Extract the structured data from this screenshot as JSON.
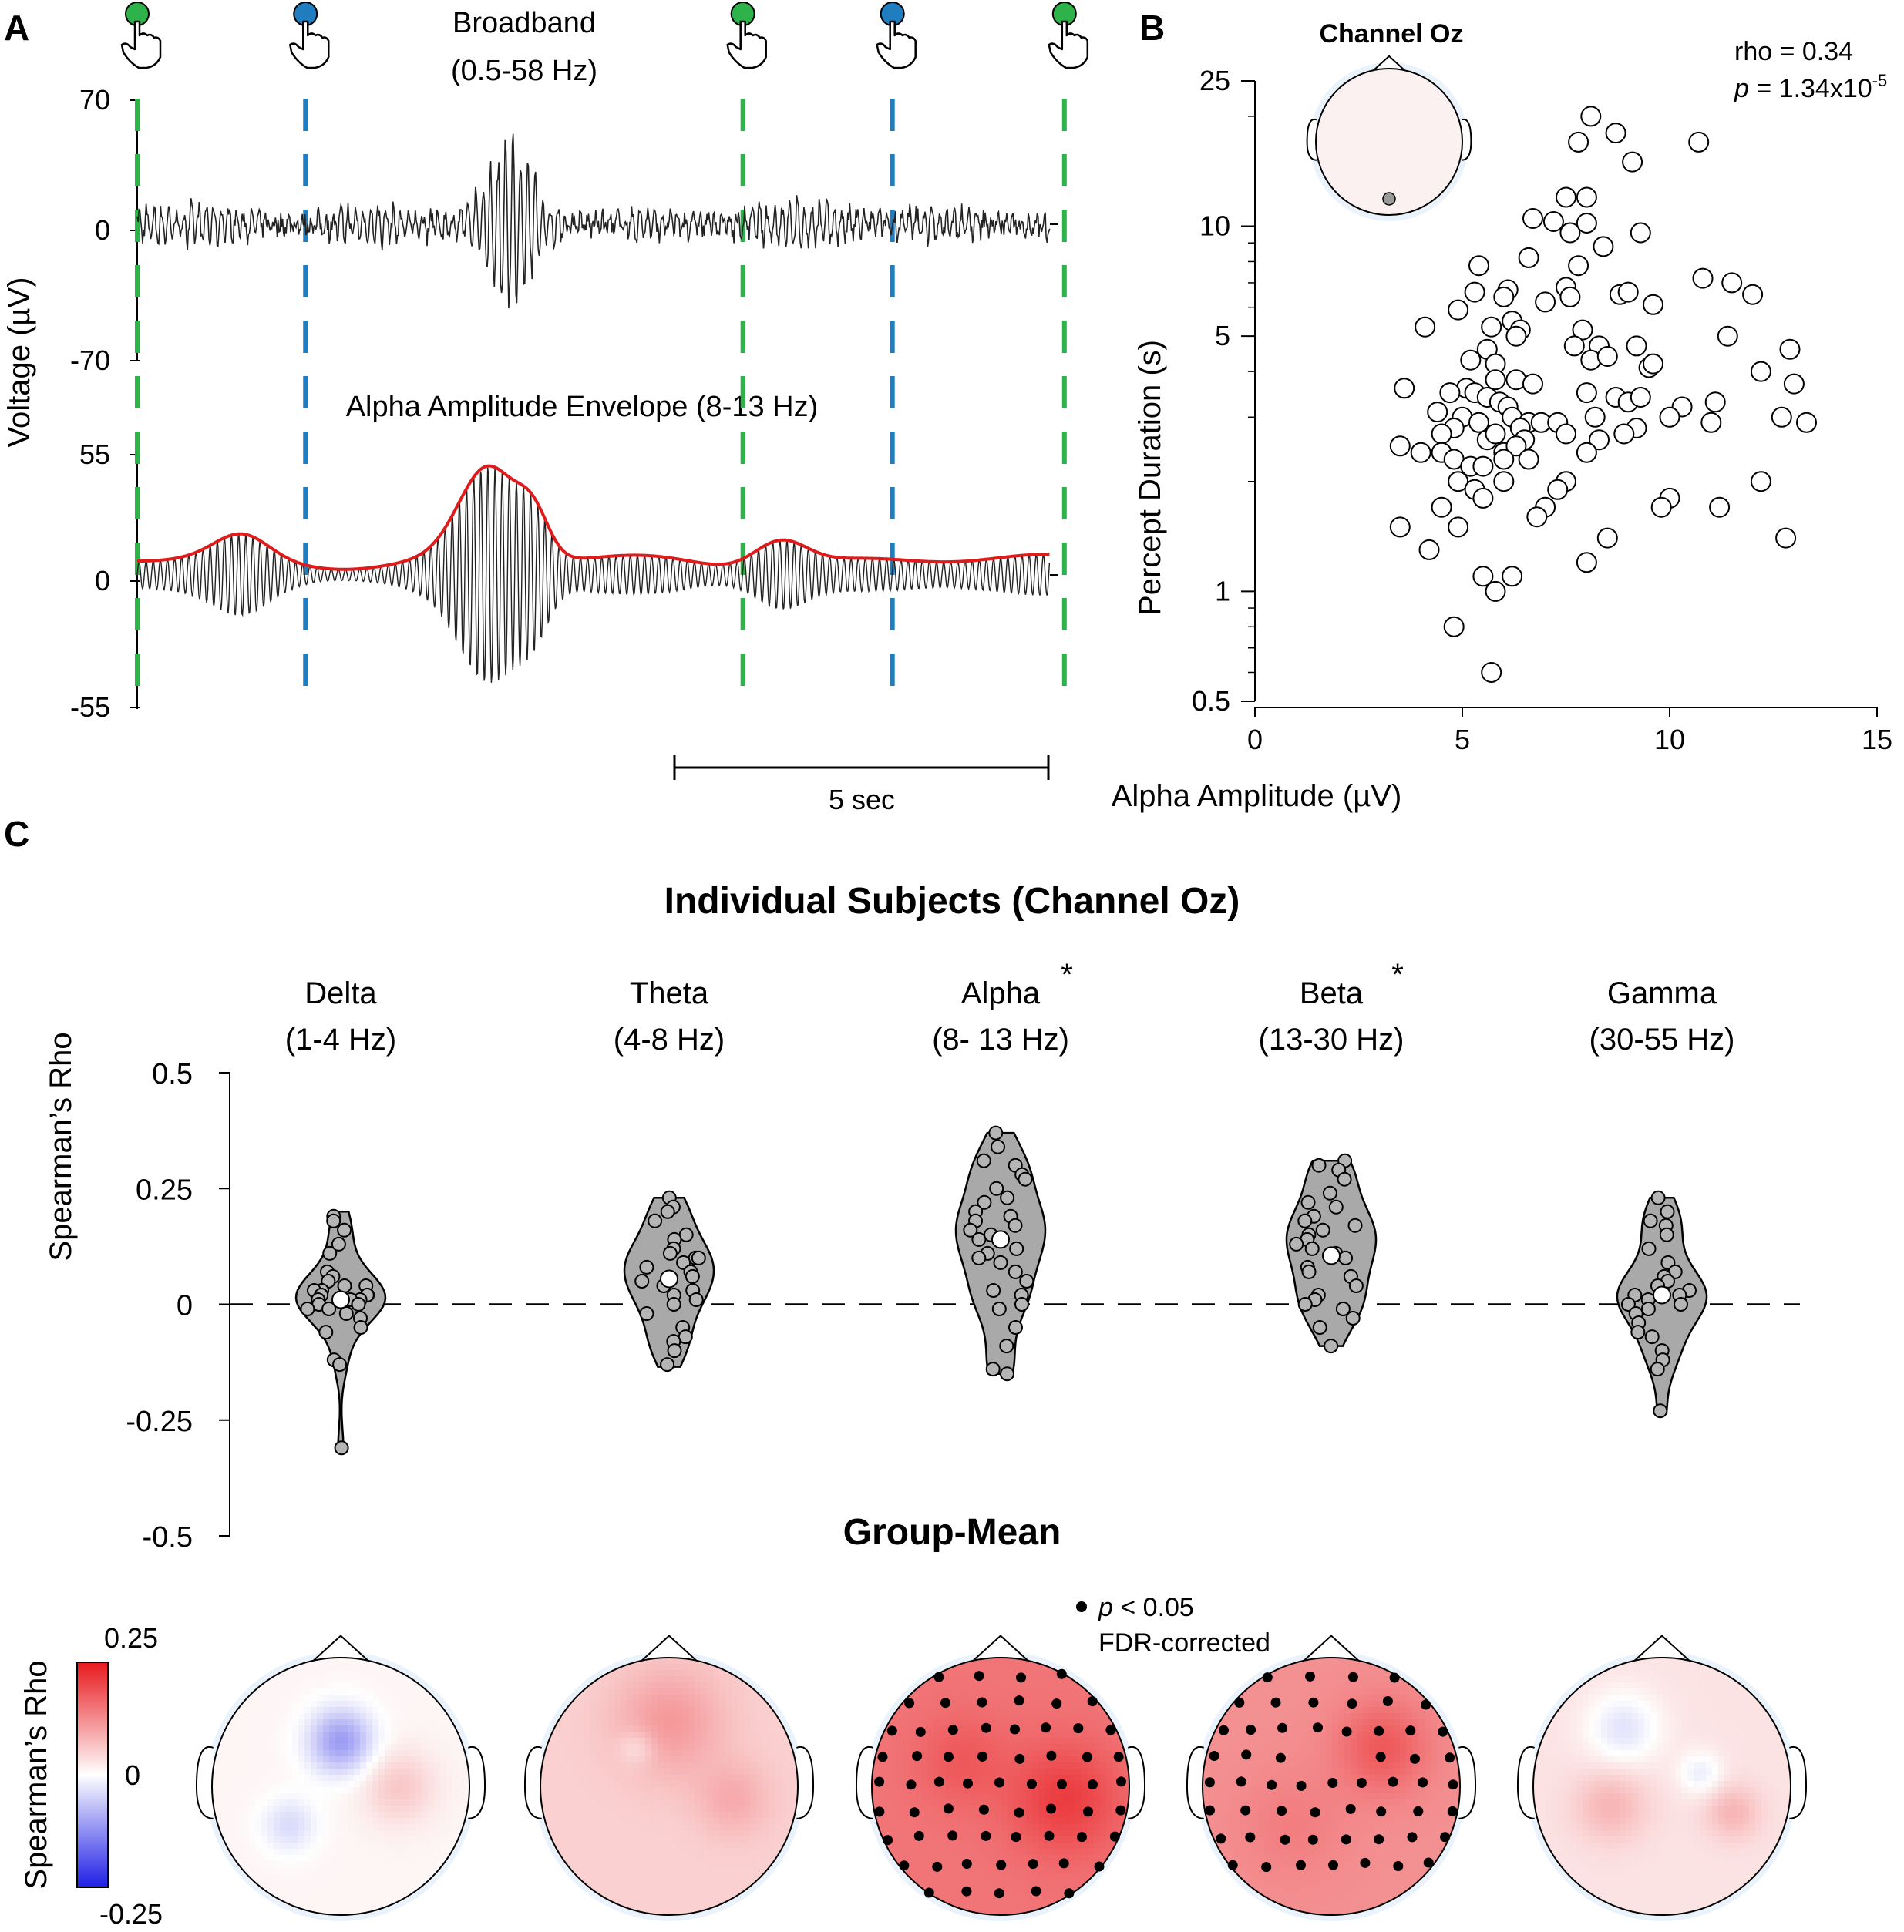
{
  "panels": {
    "a": "A",
    "b": "B",
    "c": "C"
  },
  "colors": {
    "button_green": "#2db34a",
    "button_blue": "#1f7dc0",
    "envelope_red": "#e01b1b",
    "violin_fill": "#a9a9a9",
    "dot_fill": "#b5b5b5",
    "positive_max": "#e8191d",
    "negative_min": "#1f1fe6"
  },
  "chart_data": [
    {
      "id": "A",
      "type": "line",
      "ylabel": "Voltage (µV)",
      "button_events": {
        "icon": "pointing-hand-icon",
        "times_s": [
          0,
          2.25,
          8.1,
          10.1,
          12.4
        ],
        "buttons": [
          "green",
          "blue",
          "green",
          "blue",
          "green"
        ]
      },
      "scale_bar": {
        "label": "5 sec",
        "duration_s": 5
      },
      "traces": [
        {
          "title": "Broadband",
          "subtitle": "(0.5-58 Hz)",
          "yticks": [
            70,
            0,
            -70
          ],
          "ylim": [
            -70,
            70
          ],
          "bursts": [
            {
              "t": 5.0,
              "amp": 40
            }
          ],
          "baseline_amp": 12
        },
        {
          "title": "Alpha Amplitude Envelope (8-13 Hz)",
          "yticks": [
            55,
            0,
            -55
          ],
          "ylim": [
            -55,
            55
          ],
          "envelope_peak": 40,
          "baseline_amp": 6
        }
      ]
    },
    {
      "id": "B",
      "type": "scatter",
      "title": "Channel Oz",
      "stat_rho": "rho = 0.34",
      "stat_p_label": "p",
      "stat_p_value": " = 1.34x10",
      "stat_p_exp": "-5",
      "xlabel": "Alpha Amplitude (µV)",
      "ylabel": "Percept Duration (s)",
      "x_scale": "linear",
      "y_scale": "log",
      "xlim": [
        0,
        15
      ],
      "ylim": [
        0.5,
        25
      ],
      "xticks": [
        0,
        5,
        10,
        15
      ],
      "yticks": [
        0.5,
        1,
        5,
        10,
        25
      ],
      "points": [
        [
          8.1,
          20.0
        ],
        [
          8.7,
          18.0
        ],
        [
          7.8,
          17.0
        ],
        [
          10.7,
          17.0
        ],
        [
          9.1,
          15.0
        ],
        [
          7.5,
          12.0
        ],
        [
          8.0,
          12.0
        ],
        [
          6.7,
          10.5
        ],
        [
          7.2,
          10.3
        ],
        [
          7.6,
          9.6
        ],
        [
          8.0,
          10.2
        ],
        [
          9.3,
          9.6
        ],
        [
          6.6,
          8.2
        ],
        [
          5.4,
          7.8
        ],
        [
          7.8,
          7.8
        ],
        [
          8.4,
          8.8
        ],
        [
          10.8,
          7.2
        ],
        [
          11.5,
          7.0
        ],
        [
          12.0,
          6.5
        ],
        [
          7.5,
          6.8
        ],
        [
          7.6,
          6.4
        ],
        [
          8.8,
          6.5
        ],
        [
          9.0,
          6.6
        ],
        [
          9.6,
          6.1
        ],
        [
          6.1,
          6.7
        ],
        [
          5.3,
          6.6
        ],
        [
          4.9,
          5.9
        ],
        [
          6.0,
          6.4
        ],
        [
          7.0,
          6.2
        ],
        [
          6.2,
          5.5
        ],
        [
          6.4,
          5.2
        ],
        [
          6.3,
          5.0
        ],
        [
          5.7,
          5.3
        ],
        [
          4.1,
          5.3
        ],
        [
          7.9,
          5.2
        ],
        [
          7.7,
          4.7
        ],
        [
          8.3,
          4.7
        ],
        [
          9.2,
          4.7
        ],
        [
          11.4,
          5.0
        ],
        [
          12.9,
          4.6
        ],
        [
          5.6,
          4.6
        ],
        [
          5.2,
          4.3
        ],
        [
          5.8,
          4.2
        ],
        [
          8.1,
          4.3
        ],
        [
          8.5,
          4.4
        ],
        [
          9.5,
          4.1
        ],
        [
          9.6,
          4.2
        ],
        [
          12.2,
          4.0
        ],
        [
          13.0,
          3.7
        ],
        [
          6.3,
          3.8
        ],
        [
          6.7,
          3.7
        ],
        [
          5.8,
          3.8
        ],
        [
          5.1,
          3.6
        ],
        [
          5.3,
          3.5
        ],
        [
          8.0,
          3.5
        ],
        [
          8.7,
          3.4
        ],
        [
          9.0,
          3.3
        ],
        [
          9.3,
          3.4
        ],
        [
          10.3,
          3.2
        ],
        [
          11.1,
          3.3
        ],
        [
          12.7,
          3.0
        ],
        [
          13.3,
          2.9
        ],
        [
          3.6,
          3.6
        ],
        [
          4.7,
          3.5
        ],
        [
          5.6,
          3.4
        ],
        [
          5.9,
          3.3
        ],
        [
          6.1,
          3.2
        ],
        [
          6.2,
          3.0
        ],
        [
          6.6,
          2.9
        ],
        [
          6.9,
          2.9
        ],
        [
          7.3,
          2.9
        ],
        [
          8.2,
          3.0
        ],
        [
          9.2,
          2.8
        ],
        [
          10.0,
          3.0
        ],
        [
          11.0,
          2.9
        ],
        [
          4.4,
          3.1
        ],
        [
          5.0,
          3.0
        ],
        [
          5.4,
          2.9
        ],
        [
          6.4,
          2.8
        ],
        [
          6.5,
          2.6
        ],
        [
          5.6,
          2.6
        ],
        [
          5.8,
          2.7
        ],
        [
          6.0,
          2.4
        ],
        [
          6.3,
          2.5
        ],
        [
          4.8,
          2.8
        ],
        [
          4.5,
          2.7
        ],
        [
          3.5,
          2.5
        ],
        [
          4.0,
          2.4
        ],
        [
          4.5,
          2.4
        ],
        [
          4.8,
          2.3
        ],
        [
          5.2,
          2.2
        ],
        [
          5.5,
          2.2
        ],
        [
          6.0,
          2.3
        ],
        [
          6.6,
          2.3
        ],
        [
          7.5,
          2.7
        ],
        [
          8.3,
          2.6
        ],
        [
          8.9,
          2.7
        ],
        [
          8.0,
          2.4
        ],
        [
          4.9,
          2.0
        ],
        [
          5.3,
          1.9
        ],
        [
          5.5,
          1.8
        ],
        [
          6.0,
          2.0
        ],
        [
          7.5,
          2.0
        ],
        [
          7.3,
          1.9
        ],
        [
          10.0,
          1.8
        ],
        [
          11.2,
          1.7
        ],
        [
          12.2,
          2.0
        ],
        [
          4.5,
          1.7
        ],
        [
          4.9,
          1.5
        ],
        [
          3.5,
          1.5
        ],
        [
          7.0,
          1.7
        ],
        [
          6.8,
          1.6
        ],
        [
          8.5,
          1.4
        ],
        [
          9.8,
          1.7
        ],
        [
          12.8,
          1.4
        ],
        [
          4.2,
          1.3
        ],
        [
          5.5,
          1.1
        ],
        [
          6.2,
          1.1
        ],
        [
          5.8,
          1.0
        ],
        [
          8.0,
          1.2
        ],
        [
          4.8,
          0.8
        ],
        [
          5.7,
          0.6
        ]
      ]
    },
    {
      "id": "C-violin",
      "type": "scatter",
      "title": "Individual Subjects (Channel Oz)",
      "ylabel": "Spearman’s Rho",
      "ylim": [
        -0.5,
        0.5
      ],
      "yticks": [
        0.5,
        0.25,
        0,
        -0.25,
        -0.5
      ],
      "yticklabels": [
        "0.5",
        "0.25",
        "0",
        "-0.25",
        "-0.5"
      ],
      "reference_line": 0,
      "groups": [
        {
          "name": "Delta",
          "range": "(1-4 Hz)",
          "significant": "",
          "mean": 0.01,
          "kde_range": [
            -0.31,
            0.2
          ],
          "values": [
            0.19,
            0.18,
            0.16,
            0.13,
            0.11,
            0.07,
            0.06,
            0.05,
            0.04,
            0.04,
            0.03,
            0.03,
            0.02,
            0.02,
            0.02,
            0.01,
            0.01,
            0.01,
            0.0,
            0.0,
            -0.01,
            -0.01,
            -0.02,
            -0.03,
            -0.05,
            -0.06,
            -0.12,
            -0.13,
            -0.31
          ]
        },
        {
          "name": "Theta",
          "range": "(4-8 Hz)",
          "significant": "",
          "mean": 0.055,
          "kde_range": [
            -0.135,
            0.23
          ],
          "values": [
            0.23,
            0.21,
            0.2,
            0.18,
            0.15,
            0.14,
            0.12,
            0.11,
            0.1,
            0.1,
            0.09,
            0.08,
            0.07,
            0.06,
            0.05,
            0.04,
            0.03,
            0.02,
            0.01,
            0.0,
            -0.02,
            -0.05,
            -0.07,
            -0.08,
            -0.1,
            -0.13
          ]
        },
        {
          "name": "Alpha",
          "range": "(8- 13 Hz)",
          "significant": "*",
          "mean": 0.14,
          "kde_range": [
            -0.15,
            0.37
          ],
          "values": [
            0.37,
            0.34,
            0.31,
            0.3,
            0.28,
            0.27,
            0.25,
            0.23,
            0.22,
            0.2,
            0.19,
            0.18,
            0.17,
            0.16,
            0.15,
            0.14,
            0.12,
            0.11,
            0.1,
            0.09,
            0.07,
            0.05,
            0.03,
            0.02,
            0.0,
            -0.01,
            -0.05,
            -0.09,
            -0.14,
            -0.15
          ]
        },
        {
          "name": "Beta",
          "range": "(13-30 Hz)",
          "significant": "*",
          "mean": 0.105,
          "kde_range": [
            -0.09,
            0.31
          ],
          "values": [
            0.31,
            0.3,
            0.29,
            0.27,
            0.24,
            0.22,
            0.21,
            0.19,
            0.18,
            0.17,
            0.16,
            0.15,
            0.14,
            0.13,
            0.12,
            0.11,
            0.1,
            0.08,
            0.07,
            0.06,
            0.04,
            0.02,
            0.01,
            0.0,
            -0.01,
            -0.03,
            -0.05,
            -0.09
          ]
        },
        {
          "name": "Gamma",
          "range": "(30-55 Hz)",
          "significant": "",
          "mean": 0.02,
          "kde_range": [
            -0.235,
            0.23
          ],
          "values": [
            0.23,
            0.2,
            0.18,
            0.17,
            0.15,
            0.12,
            0.09,
            0.07,
            0.06,
            0.05,
            0.04,
            0.03,
            0.02,
            0.02,
            0.01,
            0.0,
            0.0,
            -0.01,
            -0.02,
            -0.04,
            -0.06,
            -0.07,
            -0.1,
            -0.12,
            -0.14,
            -0.23
          ]
        }
      ]
    },
    {
      "id": "C-topo",
      "type": "heatmap",
      "title": "Group-Mean",
      "colorbar_label": "Spearman’s Rho",
      "colorbar_ticks": [
        "0.25",
        "0",
        "-0.25"
      ],
      "clim": [
        -0.25,
        0.25
      ],
      "legend_symbol": "p",
      "legend_text": " < 0.05",
      "legend_text2": "FDR-corrected",
      "maps": [
        {
          "band": "Delta",
          "base": 0.01,
          "blobs": [
            [
              0.0,
              0.35,
              -0.12,
              0.18
            ],
            [
              -0.4,
              -0.3,
              -0.05,
              0.15
            ],
            [
              0.45,
              0.0,
              0.05,
              0.2
            ]
          ],
          "sig_count": 0
        },
        {
          "band": "Theta",
          "base": 0.05,
          "blobs": [
            [
              0.0,
              0.5,
              0.06,
              0.3
            ],
            [
              -0.25,
              0.3,
              -0.04,
              0.1
            ],
            [
              0.5,
              -0.1,
              0.04,
              0.2
            ]
          ],
          "sig_count": 0
        },
        {
          "band": "Alpha",
          "base": 0.15,
          "blobs": [
            [
              0.5,
              -0.1,
              0.06,
              0.3
            ],
            [
              -0.3,
              0.2,
              0.03,
              0.25
            ]
          ],
          "sig_count": 71
        },
        {
          "band": "Beta",
          "base": 0.12,
          "blobs": [
            [
              0.4,
              0.3,
              0.06,
              0.25
            ],
            [
              -0.3,
              -0.3,
              0.02,
              0.3
            ]
          ],
          "sig_count": 56
        },
        {
          "band": "Gamma",
          "base": 0.03,
          "blobs": [
            [
              -0.3,
              0.45,
              -0.06,
              0.2
            ],
            [
              0.3,
              0.1,
              -0.05,
              0.12
            ],
            [
              -0.4,
              -0.15,
              0.05,
              0.2
            ],
            [
              0.55,
              -0.2,
              0.05,
              0.15
            ]
          ],
          "sig_count": 0
        }
      ]
    }
  ]
}
